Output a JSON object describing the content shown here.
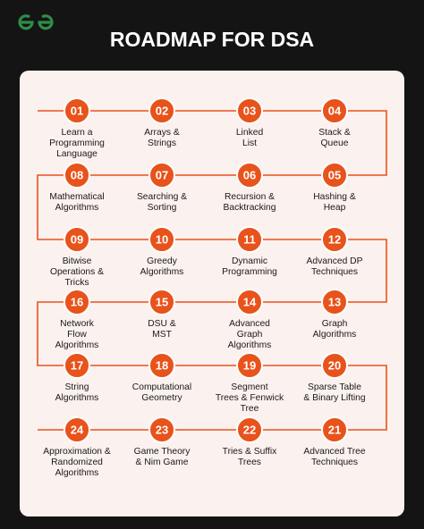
{
  "header": {
    "title": "ROADMAP FOR DSA"
  },
  "nodes": [
    {
      "number": "01",
      "label": [
        "Learn a",
        "Programming",
        "Language"
      ]
    },
    {
      "number": "02",
      "label": [
        "Arrays &",
        "Strings"
      ]
    },
    {
      "number": "03",
      "label": [
        "Linked",
        "List"
      ]
    },
    {
      "number": "04",
      "label": [
        "Stack &",
        "Queue"
      ]
    },
    {
      "number": "05",
      "label": [
        "Hashing &",
        "Heap"
      ]
    },
    {
      "number": "06",
      "label": [
        "Recursion &",
        "Backtracking"
      ]
    },
    {
      "number": "07",
      "label": [
        "Searching &",
        "Sorting"
      ]
    },
    {
      "number": "08",
      "label": [
        "Mathematical",
        "Algorithms"
      ]
    },
    {
      "number": "09",
      "label": [
        "Bitwise",
        "Operations &",
        "Tricks"
      ]
    },
    {
      "number": "10",
      "label": [
        "Greedy",
        "Algorithms"
      ]
    },
    {
      "number": "11",
      "label": [
        "Dynamic",
        "Programming"
      ]
    },
    {
      "number": "12",
      "label": [
        "Advanced DP",
        "Techniques"
      ]
    },
    {
      "number": "13",
      "label": [
        "Graph",
        "Algorithms"
      ]
    },
    {
      "number": "14",
      "label": [
        "Advanced",
        "Graph",
        "Algorithms"
      ]
    },
    {
      "number": "15",
      "label": [
        "DSU &",
        "MST"
      ]
    },
    {
      "number": "16",
      "label": [
        "Network",
        "Flow",
        "Algorithms"
      ]
    },
    {
      "number": "17",
      "label": [
        "String",
        "Algorithms"
      ]
    },
    {
      "number": "18",
      "label": [
        "Computational",
        "Geometry"
      ]
    },
    {
      "number": "19",
      "label": [
        "Segment",
        "Trees & Fenwick",
        "Tree"
      ]
    },
    {
      "number": "20",
      "label": [
        "Sparse Table",
        "& Binary Lifting"
      ]
    },
    {
      "number": "21",
      "label": [
        "Advanced Tree",
        "Techniques"
      ]
    },
    {
      "number": "22",
      "label": [
        "Tries & Suffix",
        "Trees"
      ]
    },
    {
      "number": "23",
      "label": [
        "Game Theory",
        "& Nim Game"
      ]
    },
    {
      "number": "24",
      "label": [
        "Approximation &",
        "Randomized",
        "Algorithms"
      ]
    }
  ]
}
